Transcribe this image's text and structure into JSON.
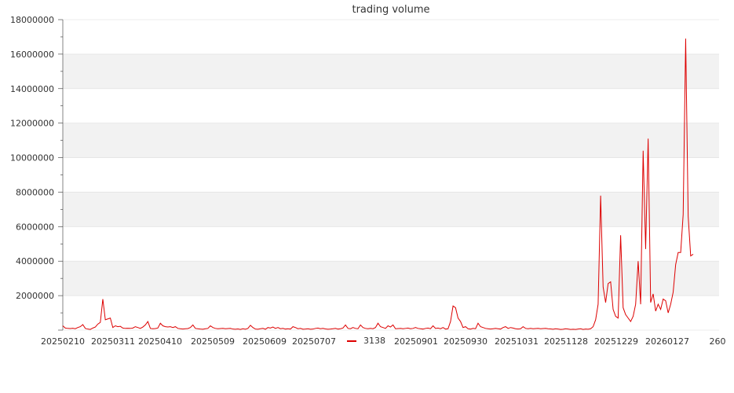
{
  "chart_data": {
    "type": "line",
    "title": "trading volume",
    "xlabel": "",
    "ylabel": "",
    "ylim": [
      0,
      18000000
    ],
    "yticks": [
      "2000000",
      "4000000",
      "6000000",
      "8000000",
      "10000000",
      "12000000",
      "14000000",
      "16000000",
      "18000000"
    ],
    "xticks": [
      "20250210",
      "20250311",
      "20250410",
      "20250509",
      "20250609",
      "20250707",
      "20250901",
      "20250930",
      "20251031",
      "20251128",
      "20251229",
      "20260127",
      "260"
    ],
    "grid": true,
    "legend_position": "bottom",
    "line_color": "#dd0000",
    "band_color": "#f2f2f2",
    "series": [
      {
        "name": "3138",
        "values": [
          250000,
          120000,
          100000,
          90000,
          110000,
          80000,
          150000,
          200000,
          320000,
          100000,
          60000,
          40000,
          120000,
          180000,
          350000,
          450000,
          1800000,
          600000,
          650000,
          700000,
          150000,
          250000,
          200000,
          220000,
          120000,
          100000,
          110000,
          100000,
          120000,
          200000,
          150000,
          100000,
          180000,
          300000,
          500000,
          100000,
          80000,
          90000,
          120000,
          400000,
          250000,
          200000,
          180000,
          200000,
          150000,
          200000,
          100000,
          80000,
          60000,
          80000,
          90000,
          150000,
          300000,
          100000,
          80000,
          60000,
          50000,
          80000,
          100000,
          250000,
          150000,
          100000,
          80000,
          90000,
          100000,
          80000,
          90000,
          100000,
          60000,
          50000,
          70000,
          40000,
          80000,
          50000,
          100000,
          280000,
          150000,
          60000,
          50000,
          80000,
          100000,
          50000,
          150000,
          120000,
          180000,
          100000,
          150000,
          80000,
          100000,
          60000,
          80000,
          60000,
          200000,
          150000,
          80000,
          100000,
          50000,
          60000,
          80000,
          50000,
          60000,
          100000,
          120000,
          80000,
          100000,
          70000,
          50000,
          60000,
          80000,
          100000,
          60000,
          80000,
          120000,
          300000,
          100000,
          80000,
          150000,
          100000,
          80000,
          300000,
          150000,
          100000,
          80000,
          100000,
          80000,
          150000,
          400000,
          200000,
          150000,
          100000,
          250000,
          180000,
          300000,
          80000,
          90000,
          100000,
          80000,
          100000,
          120000,
          80000,
          100000,
          150000,
          100000,
          80000,
          60000,
          100000,
          120000,
          80000,
          250000,
          100000,
          120000,
          80000,
          150000,
          60000,
          80000,
          500000,
          1400000,
          1300000,
          700000,
          500000,
          150000,
          200000,
          80000,
          60000,
          100000,
          80000,
          400000,
          200000,
          150000,
          100000,
          80000,
          60000,
          80000,
          100000,
          80000,
          60000,
          150000,
          200000,
          100000,
          150000,
          120000,
          80000,
          60000,
          80000,
          200000,
          100000,
          80000,
          100000,
          80000,
          90000,
          100000,
          80000,
          90000,
          100000,
          80000,
          70000,
          50000,
          80000,
          60000,
          40000,
          50000,
          80000,
          60000,
          40000,
          50000,
          40000,
          60000,
          80000,
          40000,
          60000,
          50000,
          80000,
          200000,
          600000,
          1500000,
          7800000,
          2500000,
          1600000,
          2700000,
          2800000,
          1200000,
          800000,
          700000,
          5500000,
          1300000,
          900000,
          700000,
          500000,
          800000,
          1500000,
          4000000,
          1500000,
          10400000,
          4700000,
          11100000,
          1600000,
          2100000,
          1100000,
          1500000,
          1200000,
          1800000,
          1700000,
          1000000,
          1500000,
          2200000,
          3800000,
          4500000,
          4500000,
          6700000,
          16900000,
          6600000,
          4300000,
          4400000
        ]
      }
    ]
  }
}
